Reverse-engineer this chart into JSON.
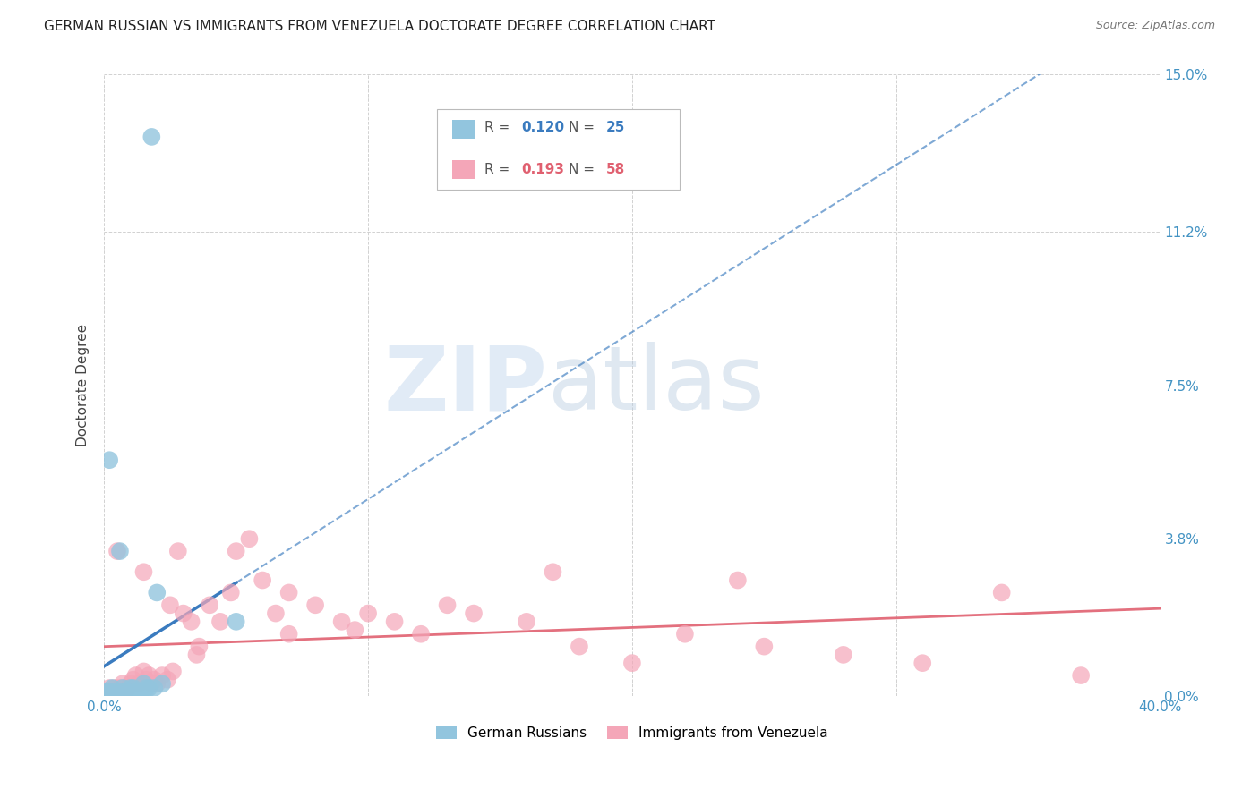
{
  "title": "GERMAN RUSSIAN VS IMMIGRANTS FROM VENEZUELA DOCTORATE DEGREE CORRELATION CHART",
  "source": "Source: ZipAtlas.com",
  "ylabel": "Doctorate Degree",
  "xlim": [
    0.0,
    0.4
  ],
  "ylim": [
    0.0,
    0.15
  ],
  "xticks": [
    0.0,
    0.1,
    0.2,
    0.3,
    0.4
  ],
  "yticks": [
    0.0,
    0.038,
    0.075,
    0.112,
    0.15
  ],
  "ytick_labels": [
    "0.0%",
    "3.8%",
    "7.5%",
    "11.2%",
    "15.0%"
  ],
  "r_blue": 0.12,
  "n_blue": 25,
  "r_pink": 0.193,
  "n_pink": 58,
  "legend_label_blue": "German Russians",
  "legend_label_pink": "Immigrants from Venezuela",
  "color_blue": "#92c5de",
  "color_pink": "#f4a6b8",
  "line_color_blue": "#3a7bbf",
  "line_color_pink": "#e06070",
  "background_color": "#ffffff",
  "watermark_zip": "ZIP",
  "watermark_atlas": "atlas",
  "blue_scatter_x": [
    0.018,
    0.003,
    0.001,
    0.002,
    0.005,
    0.008,
    0.003,
    0.006,
    0.007,
    0.009,
    0.011,
    0.013,
    0.015,
    0.017,
    0.019,
    0.004,
    0.01,
    0.012,
    0.014,
    0.016,
    0.002,
    0.02,
    0.022,
    0.006,
    0.05
  ],
  "blue_scatter_y": [
    0.135,
    0.0,
    0.001,
    0.001,
    0.0,
    0.001,
    0.002,
    0.001,
    0.002,
    0.001,
    0.002,
    0.001,
    0.003,
    0.002,
    0.002,
    0.001,
    0.002,
    0.001,
    0.001,
    0.002,
    0.057,
    0.025,
    0.003,
    0.035,
    0.018
  ],
  "pink_scatter_x": [
    0.001,
    0.002,
    0.003,
    0.004,
    0.005,
    0.006,
    0.007,
    0.008,
    0.009,
    0.01,
    0.011,
    0.012,
    0.013,
    0.015,
    0.016,
    0.017,
    0.018,
    0.019,
    0.02,
    0.022,
    0.024,
    0.026,
    0.028,
    0.03,
    0.033,
    0.036,
    0.04,
    0.044,
    0.048,
    0.055,
    0.06,
    0.065,
    0.07,
    0.08,
    0.09,
    0.1,
    0.11,
    0.12,
    0.14,
    0.16,
    0.18,
    0.2,
    0.22,
    0.25,
    0.28,
    0.31,
    0.34,
    0.37,
    0.005,
    0.015,
    0.025,
    0.035,
    0.05,
    0.07,
    0.095,
    0.13,
    0.17,
    0.24
  ],
  "pink_scatter_y": [
    0.001,
    0.002,
    0.001,
    0.002,
    0.001,
    0.002,
    0.003,
    0.001,
    0.002,
    0.003,
    0.004,
    0.005,
    0.003,
    0.006,
    0.004,
    0.005,
    0.003,
    0.004,
    0.003,
    0.005,
    0.004,
    0.006,
    0.035,
    0.02,
    0.018,
    0.012,
    0.022,
    0.018,
    0.025,
    0.038,
    0.028,
    0.02,
    0.015,
    0.022,
    0.018,
    0.02,
    0.018,
    0.015,
    0.02,
    0.018,
    0.012,
    0.008,
    0.015,
    0.012,
    0.01,
    0.008,
    0.025,
    0.005,
    0.035,
    0.03,
    0.022,
    0.01,
    0.035,
    0.025,
    0.016,
    0.022,
    0.03,
    0.028
  ]
}
